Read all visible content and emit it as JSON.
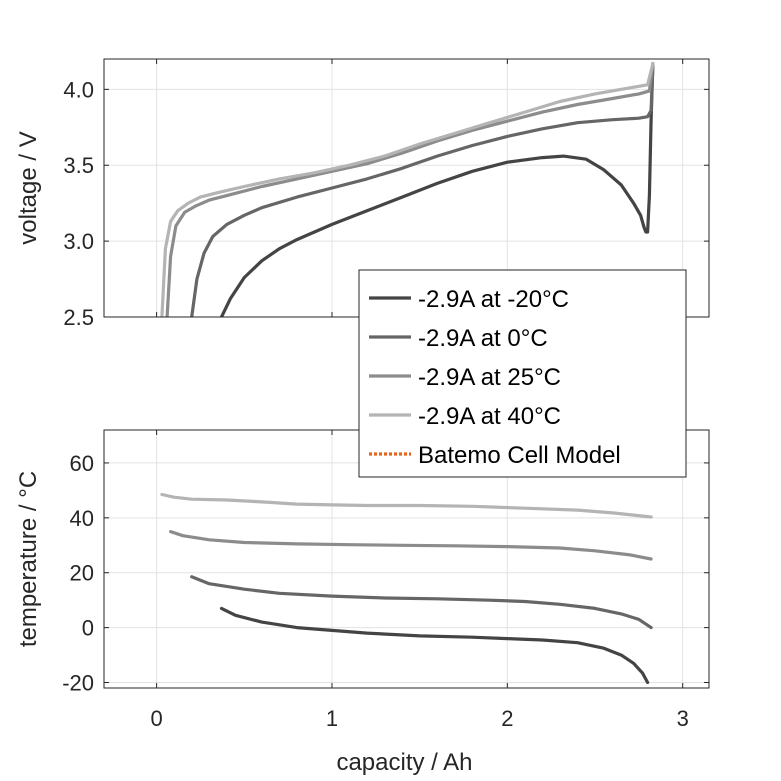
{
  "chart_data": [
    {
      "type": "line",
      "name": "voltage-plot",
      "xlabel": "",
      "ylabel": "voltage / V",
      "xlim": [
        -0.3,
        3.15
      ],
      "ylim": [
        2.5,
        4.2
      ],
      "xticks": [
        0,
        1,
        2,
        3
      ],
      "yticks": [
        2.5,
        3.0,
        3.5,
        4.0
      ],
      "ytick_labels": [
        "2.5",
        "3.0",
        "3.5",
        "4.0"
      ],
      "show_xtick_labels": false,
      "grid": true,
      "series": [
        {
          "name": "-2.9A at -20°C",
          "color": "#444444",
          "x": [
            0.37,
            0.42,
            0.5,
            0.6,
            0.7,
            0.8,
            1.0,
            1.2,
            1.4,
            1.6,
            1.8,
            2.0,
            2.2,
            2.32,
            2.45,
            2.55,
            2.65,
            2.72,
            2.76,
            2.78,
            2.79,
            2.8,
            2.81,
            2.82,
            2.83
          ],
          "y": [
            2.5,
            2.62,
            2.76,
            2.87,
            2.95,
            3.01,
            3.11,
            3.2,
            3.29,
            3.38,
            3.46,
            3.52,
            3.55,
            3.56,
            3.54,
            3.47,
            3.37,
            3.25,
            3.17,
            3.09,
            3.06,
            3.06,
            3.3,
            3.8,
            4.17
          ]
        },
        {
          "name": "-2.9A at 0°C",
          "color": "#666666",
          "x": [
            0.2,
            0.23,
            0.27,
            0.32,
            0.4,
            0.5,
            0.6,
            0.8,
            1.0,
            1.2,
            1.4,
            1.6,
            1.8,
            2.0,
            2.2,
            2.4,
            2.6,
            2.75,
            2.8,
            2.82,
            2.83
          ],
          "y": [
            2.5,
            2.75,
            2.92,
            3.03,
            3.11,
            3.17,
            3.22,
            3.29,
            3.35,
            3.41,
            3.48,
            3.56,
            3.63,
            3.69,
            3.74,
            3.78,
            3.8,
            3.81,
            3.82,
            3.86,
            4.17
          ]
        },
        {
          "name": "-2.9A at 25°C",
          "color": "#8c8c8c",
          "x": [
            0.06,
            0.08,
            0.11,
            0.16,
            0.22,
            0.3,
            0.4,
            0.6,
            0.8,
            1.0,
            1.2,
            1.4,
            1.6,
            1.8,
            2.0,
            2.2,
            2.4,
            2.6,
            2.75,
            2.81,
            2.83
          ],
          "y": [
            2.5,
            2.9,
            3.1,
            3.19,
            3.23,
            3.27,
            3.3,
            3.36,
            3.41,
            3.46,
            3.51,
            3.58,
            3.66,
            3.73,
            3.79,
            3.85,
            3.9,
            3.94,
            3.97,
            3.99,
            4.17
          ]
        },
        {
          "name": "-2.9A at 40°C",
          "color": "#b4b4b4",
          "x": [
            0.03,
            0.05,
            0.08,
            0.12,
            0.18,
            0.25,
            0.35,
            0.5,
            0.7,
            0.9,
            1.1,
            1.3,
            1.5,
            1.7,
            1.9,
            2.1,
            2.3,
            2.5,
            2.7,
            2.8,
            2.83
          ],
          "y": [
            2.5,
            2.95,
            3.13,
            3.2,
            3.25,
            3.29,
            3.32,
            3.36,
            3.41,
            3.45,
            3.5,
            3.56,
            3.64,
            3.71,
            3.78,
            3.85,
            3.92,
            3.97,
            4.01,
            4.03,
            4.17
          ]
        },
        {
          "name": "Batemo Cell Model",
          "color": "#e8641a",
          "dashed": true,
          "x": [],
          "y": []
        }
      ]
    },
    {
      "type": "line",
      "name": "temperature-plot",
      "xlabel": "capacity / Ah",
      "ylabel": "temperature / °C",
      "xlim": [
        -0.3,
        3.15
      ],
      "ylim": [
        -22,
        72
      ],
      "xticks": [
        0,
        1,
        2,
        3
      ],
      "xtick_labels": [
        "0",
        "1",
        "2",
        "3"
      ],
      "yticks": [
        -20,
        0,
        20,
        40,
        60
      ],
      "ytick_labels": [
        "-20",
        "0",
        "20",
        "40",
        "60"
      ],
      "grid": true,
      "series": [
        {
          "name": "-2.9A at -20°C",
          "color": "#444444",
          "x": [
            0.37,
            0.45,
            0.6,
            0.8,
            1.0,
            1.2,
            1.5,
            1.8,
            2.0,
            2.2,
            2.4,
            2.55,
            2.65,
            2.72,
            2.77,
            2.8
          ],
          "y": [
            7,
            4.5,
            2,
            0,
            -1,
            -2,
            -3,
            -3.5,
            -4,
            -4.5,
            -5.5,
            -7.5,
            -10,
            -13,
            -16.5,
            -20
          ]
        },
        {
          "name": "-2.9A at 0°C",
          "color": "#666666",
          "x": [
            0.2,
            0.3,
            0.5,
            0.7,
            1.0,
            1.3,
            1.6,
            1.9,
            2.1,
            2.3,
            2.5,
            2.65,
            2.75,
            2.82
          ],
          "y": [
            18.5,
            16,
            14,
            12.5,
            11.5,
            10.8,
            10.5,
            10,
            9.5,
            8.5,
            7,
            5,
            3,
            0
          ]
        },
        {
          "name": "-2.9A at 25°C",
          "color": "#8c8c8c",
          "x": [
            0.08,
            0.15,
            0.3,
            0.5,
            0.8,
            1.1,
            1.4,
            1.7,
            2.0,
            2.3,
            2.5,
            2.7,
            2.82
          ],
          "y": [
            35,
            33.5,
            32,
            31,
            30.5,
            30.2,
            30,
            29.8,
            29.5,
            29,
            28,
            26.5,
            25
          ]
        },
        {
          "name": "-2.9A at 40°C",
          "color": "#b4b4b4",
          "x": [
            0.03,
            0.1,
            0.2,
            0.4,
            0.6,
            0.8,
            1.0,
            1.2,
            1.5,
            1.8,
            2.1,
            2.4,
            2.6,
            2.82
          ],
          "y": [
            48.5,
            47.5,
            46.8,
            46.5,
            45.8,
            45,
            44.7,
            44.5,
            44.5,
            44.2,
            43.5,
            42.8,
            41.8,
            40.3
          ]
        }
      ]
    }
  ],
  "legend": {
    "placement": "center-right",
    "entries": [
      {
        "label": "-2.9A at -20°C",
        "color": "#444444",
        "style": "solid"
      },
      {
        "label": "-2.9A at 0°C",
        "color": "#666666",
        "style": "solid"
      },
      {
        "label": "-2.9A at 25°C",
        "color": "#8c8c8c",
        "style": "solid"
      },
      {
        "label": "-2.9A at 40°C",
        "color": "#b4b4b4",
        "style": "solid"
      },
      {
        "label": "Batemo Cell Model",
        "color": "#e8641a",
        "style": "dotted"
      }
    ]
  }
}
